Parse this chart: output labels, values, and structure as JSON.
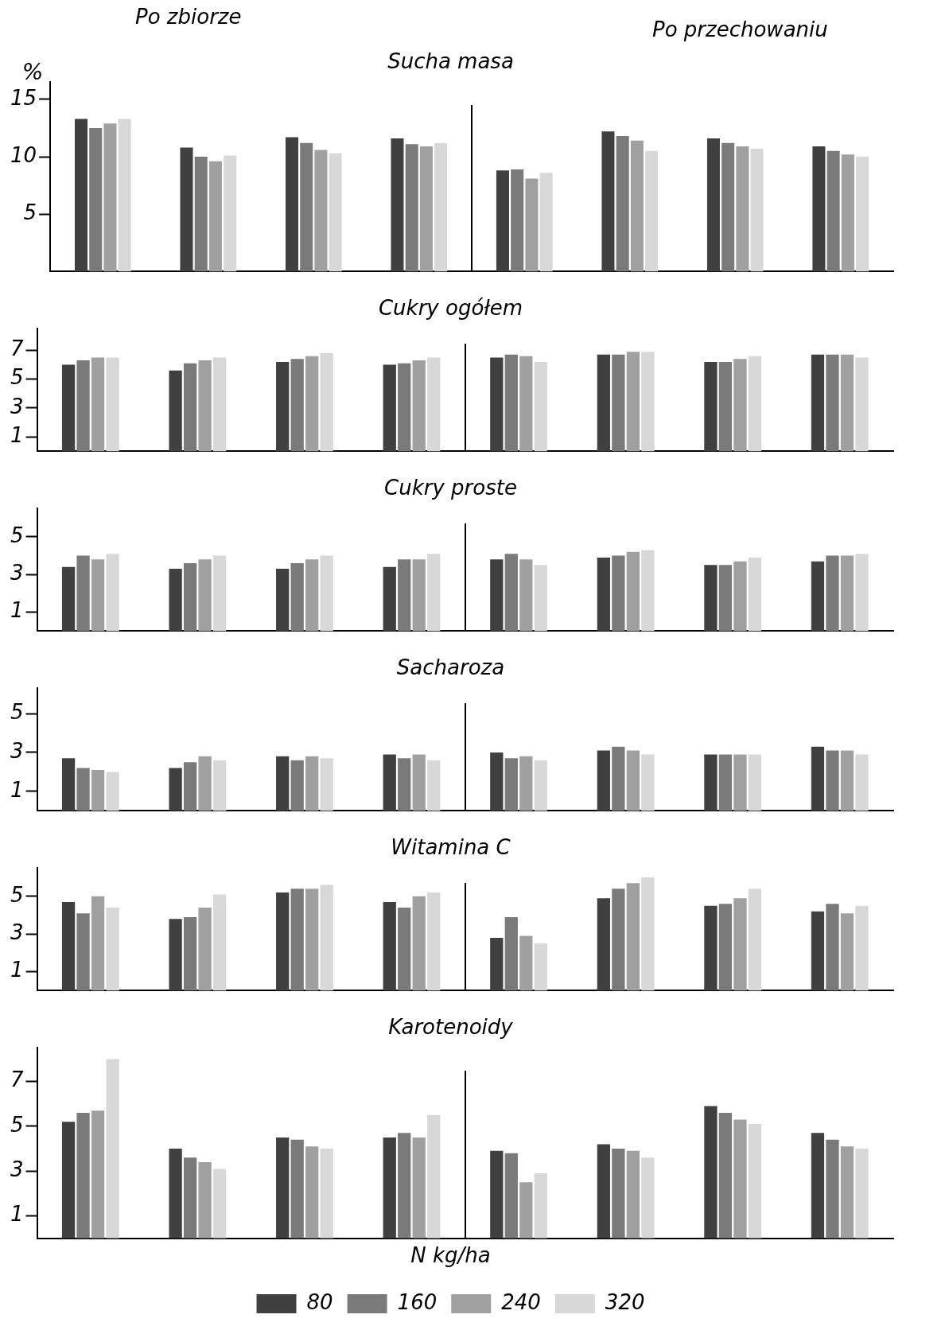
{
  "chart_data": [
    {
      "type": "bar",
      "title": "Sucha masa",
      "ylabel": "%",
      "annotations": [
        "Po zbiorze",
        "Po przechowaniu"
      ],
      "categories": [
        null,
        null,
        null,
        null,
        null,
        null,
        null,
        null
      ],
      "ylim": [
        0,
        16.5
      ],
      "yticks": [
        5,
        10,
        15
      ],
      "grid": false,
      "legend": false,
      "tick_labels": "y",
      "series": [
        {
          "color": "#404040",
          "values": [
            13.3,
            10.8,
            11.7,
            11.6,
            8.8,
            12.2,
            11.6,
            10.9
          ]
        },
        {
          "color": "#7a7a7a",
          "values": [
            12.5,
            10.0,
            11.2,
            11.1,
            8.9,
            11.8,
            11.2,
            10.5
          ]
        },
        {
          "color": "#a0a0a0",
          "values": [
            12.9,
            9.6,
            10.6,
            10.9,
            8.1,
            11.4,
            10.9,
            10.2
          ]
        },
        {
          "color": "#d8d8d8",
          "values": [
            13.3,
            10.1,
            10.3,
            11.2,
            8.6,
            10.5,
            10.7,
            10.0
          ]
        }
      ]
    },
    {
      "type": "bar",
      "title": "Cukry ogółem",
      "categories": [
        null,
        null,
        null,
        null,
        null,
        null,
        null,
        null
      ],
      "ylim": [
        0,
        8.5
      ],
      "yticks": [
        1,
        3,
        5,
        7
      ],
      "grid": false,
      "legend": false,
      "tick_labels": "y",
      "series": [
        {
          "color": "#404040",
          "values": [
            6.0,
            5.6,
            6.2,
            6.0,
            6.5,
            6.7,
            6.2,
            6.7
          ]
        },
        {
          "color": "#7a7a7a",
          "values": [
            6.3,
            6.1,
            6.4,
            6.1,
            6.7,
            6.7,
            6.2,
            6.7
          ]
        },
        {
          "color": "#a0a0a0",
          "values": [
            6.5,
            6.3,
            6.6,
            6.3,
            6.6,
            6.9,
            6.4,
            6.7
          ]
        },
        {
          "color": "#d8d8d8",
          "values": [
            6.5,
            6.5,
            6.8,
            6.5,
            6.2,
            6.9,
            6.6,
            6.5
          ]
        }
      ]
    },
    {
      "type": "bar",
      "title": "Cukry proste",
      "categories": [
        null,
        null,
        null,
        null,
        null,
        null,
        null,
        null
      ],
      "ylim": [
        0,
        6.5
      ],
      "yticks": [
        1,
        3,
        5
      ],
      "grid": false,
      "legend": false,
      "tick_labels": "y",
      "series": [
        {
          "color": "#404040",
          "values": [
            3.4,
            3.3,
            3.3,
            3.4,
            3.8,
            3.9,
            3.5,
            3.7
          ]
        },
        {
          "color": "#7a7a7a",
          "values": [
            4.0,
            3.6,
            3.6,
            3.8,
            4.1,
            4.0,
            3.5,
            4.0
          ]
        },
        {
          "color": "#a0a0a0",
          "values": [
            3.8,
            3.8,
            3.8,
            3.8,
            3.8,
            4.2,
            3.7,
            4.0
          ]
        },
        {
          "color": "#d8d8d8",
          "values": [
            4.1,
            4.0,
            4.0,
            4.1,
            3.5,
            4.3,
            3.9,
            4.1
          ]
        }
      ]
    },
    {
      "type": "bar",
      "title": "Sacharoza",
      "categories": [
        null,
        null,
        null,
        null,
        null,
        null,
        null,
        null
      ],
      "ylim": [
        0,
        6.3
      ],
      "yticks": [
        1,
        3,
        5
      ],
      "grid": false,
      "legend": false,
      "tick_labels": "y",
      "series": [
        {
          "color": "#404040",
          "values": [
            2.7,
            2.2,
            2.8,
            2.9,
            3.0,
            3.1,
            2.9,
            3.3
          ]
        },
        {
          "color": "#7a7a7a",
          "values": [
            2.2,
            2.5,
            2.6,
            2.7,
            2.7,
            3.3,
            2.9,
            3.1
          ]
        },
        {
          "color": "#a0a0a0",
          "values": [
            2.1,
            2.8,
            2.8,
            2.9,
            2.8,
            3.1,
            2.9,
            3.1
          ]
        },
        {
          "color": "#d8d8d8",
          "values": [
            2.0,
            2.6,
            2.7,
            2.6,
            2.6,
            2.9,
            2.9,
            2.9
          ]
        }
      ]
    },
    {
      "type": "bar",
      "title": "Witamina C",
      "categories": [
        null,
        null,
        null,
        null,
        null,
        null,
        null,
        null
      ],
      "ylim": [
        0,
        6.5
      ],
      "yticks": [
        1,
        3,
        5
      ],
      "grid": false,
      "legend": false,
      "tick_labels": "y",
      "series": [
        {
          "color": "#404040",
          "values": [
            4.7,
            3.8,
            5.2,
            4.7,
            2.8,
            4.9,
            4.5,
            4.2
          ]
        },
        {
          "color": "#7a7a7a",
          "values": [
            4.1,
            3.9,
            5.4,
            4.4,
            3.9,
            5.4,
            4.6,
            4.6
          ]
        },
        {
          "color": "#a0a0a0",
          "values": [
            5.0,
            4.4,
            5.4,
            5.0,
            2.9,
            5.7,
            4.9,
            4.1
          ]
        },
        {
          "color": "#d8d8d8",
          "values": [
            4.4,
            5.1,
            5.6,
            5.2,
            2.5,
            6.0,
            5.4,
            4.5
          ]
        }
      ]
    },
    {
      "type": "bar",
      "title": "Karotenoidy",
      "legend_title": "N kg/ha",
      "categories": [
        null,
        null,
        null,
        null,
        null,
        null,
        null,
        null
      ],
      "ylim": [
        0,
        8.5
      ],
      "yticks": [
        1,
        3,
        5,
        7
      ],
      "grid": false,
      "legend": "bottom",
      "tick_labels": "y",
      "series": [
        {
          "name": "80",
          "color": "#404040",
          "values": [
            5.2,
            4.0,
            4.5,
            4.5,
            3.9,
            4.2,
            5.9,
            4.7
          ]
        },
        {
          "name": "160",
          "color": "#7a7a7a",
          "values": [
            5.6,
            3.6,
            4.4,
            4.7,
            3.8,
            4.0,
            5.6,
            4.4
          ]
        },
        {
          "name": "240",
          "color": "#a0a0a0",
          "values": [
            5.7,
            3.4,
            4.1,
            4.5,
            2.5,
            3.9,
            5.3,
            4.1
          ]
        },
        {
          "name": "320",
          "color": "#d8d8d8",
          "values": [
            8.0,
            3.1,
            4.0,
            5.5,
            2.9,
            3.6,
            5.1,
            4.0
          ]
        }
      ]
    }
  ]
}
